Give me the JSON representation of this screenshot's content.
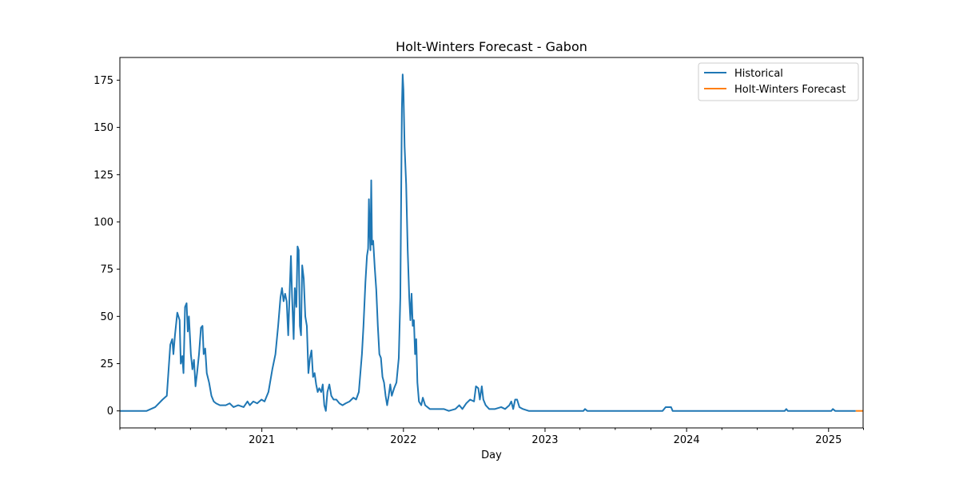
{
  "chart_data": {
    "type": "line",
    "title": "Holt-Winters Forecast - Gabon",
    "xlabel": "Day",
    "ylabel": "",
    "xlim": [
      "2020-01-01",
      "2025-03-31"
    ],
    "ylim": [
      -9,
      187
    ],
    "yticks": [
      0,
      25,
      50,
      75,
      100,
      125,
      150,
      175
    ],
    "xticks": [
      {
        "date": "2021-01-01",
        "label": "2021"
      },
      {
        "date": "2022-01-01",
        "label": "2022"
      },
      {
        "date": "2023-01-01",
        "label": "2023"
      },
      {
        "date": "2024-01-01",
        "label": "2024"
      },
      {
        "date": "2025-01-01",
        "label": "2025"
      }
    ],
    "minor_xticks": [
      "2020-01-01",
      "2020-04-01",
      "2020-07-01",
      "2020-10-01",
      "2021-04-01",
      "2021-07-01",
      "2021-10-01",
      "2022-04-01",
      "2022-07-01",
      "2022-10-01",
      "2023-04-01",
      "2023-07-01",
      "2023-10-01",
      "2024-04-01",
      "2024-07-01",
      "2024-10-01",
      "2025-04-01"
    ],
    "grid": false,
    "legend_position": "top-right",
    "series": [
      {
        "name": "Historical",
        "color": "#1f77b4",
        "points": [
          [
            "2020-01-01",
            0
          ],
          [
            "2020-03-10",
            0
          ],
          [
            "2020-04-01",
            2
          ],
          [
            "2020-04-20",
            6
          ],
          [
            "2020-05-01",
            8
          ],
          [
            "2020-05-05",
            20
          ],
          [
            "2020-05-10",
            35
          ],
          [
            "2020-05-15",
            38
          ],
          [
            "2020-05-18",
            30
          ],
          [
            "2020-05-22",
            40
          ],
          [
            "2020-05-28",
            52
          ],
          [
            "2020-06-03",
            48
          ],
          [
            "2020-06-06",
            25
          ],
          [
            "2020-06-10",
            29
          ],
          [
            "2020-06-13",
            20
          ],
          [
            "2020-06-17",
            55
          ],
          [
            "2020-06-21",
            57
          ],
          [
            "2020-06-24",
            42
          ],
          [
            "2020-06-27",
            50
          ],
          [
            "2020-07-02",
            30
          ],
          [
            "2020-07-06",
            22
          ],
          [
            "2020-07-10",
            27
          ],
          [
            "2020-07-14",
            13
          ],
          [
            "2020-07-18",
            20
          ],
          [
            "2020-07-23",
            30
          ],
          [
            "2020-07-28",
            44
          ],
          [
            "2020-08-01",
            45
          ],
          [
            "2020-08-04",
            30
          ],
          [
            "2020-08-08",
            33
          ],
          [
            "2020-08-12",
            20
          ],
          [
            "2020-08-18",
            15
          ],
          [
            "2020-08-24",
            8
          ],
          [
            "2020-08-30",
            5
          ],
          [
            "2020-09-05",
            4
          ],
          [
            "2020-09-15",
            3
          ],
          [
            "2020-09-30",
            3
          ],
          [
            "2020-10-10",
            4
          ],
          [
            "2020-10-20",
            2
          ],
          [
            "2020-11-01",
            3
          ],
          [
            "2020-11-15",
            2
          ],
          [
            "2020-11-25",
            5
          ],
          [
            "2020-12-01",
            3
          ],
          [
            "2020-12-10",
            5
          ],
          [
            "2020-12-20",
            4
          ],
          [
            "2020-12-31",
            6
          ],
          [
            "2021-01-08",
            5
          ],
          [
            "2021-01-18",
            10
          ],
          [
            "2021-01-28",
            22
          ],
          [
            "2021-02-05",
            30
          ],
          [
            "2021-02-12",
            45
          ],
          [
            "2021-02-18",
            60
          ],
          [
            "2021-02-22",
            65
          ],
          [
            "2021-02-26",
            58
          ],
          [
            "2021-03-02",
            62
          ],
          [
            "2021-03-06",
            58
          ],
          [
            "2021-03-10",
            40
          ],
          [
            "2021-03-14",
            65
          ],
          [
            "2021-03-17",
            82
          ],
          [
            "2021-03-20",
            60
          ],
          [
            "2021-03-24",
            38
          ],
          [
            "2021-03-27",
            65
          ],
          [
            "2021-03-31",
            55
          ],
          [
            "2021-04-03",
            87
          ],
          [
            "2021-04-06",
            85
          ],
          [
            "2021-04-09",
            45
          ],
          [
            "2021-04-12",
            40
          ],
          [
            "2021-04-15",
            77
          ],
          [
            "2021-04-19",
            70
          ],
          [
            "2021-04-23",
            50
          ],
          [
            "2021-04-27",
            45
          ],
          [
            "2021-05-01",
            20
          ],
          [
            "2021-05-05",
            28
          ],
          [
            "2021-05-09",
            32
          ],
          [
            "2021-05-13",
            18
          ],
          [
            "2021-05-17",
            20
          ],
          [
            "2021-05-21",
            14
          ],
          [
            "2021-05-25",
            10
          ],
          [
            "2021-05-29",
            12
          ],
          [
            "2021-06-03",
            10
          ],
          [
            "2021-06-07",
            14
          ],
          [
            "2021-06-11",
            3
          ],
          [
            "2021-06-15",
            0
          ],
          [
            "2021-06-19",
            10
          ],
          [
            "2021-06-24",
            14
          ],
          [
            "2021-06-29",
            8
          ],
          [
            "2021-07-05",
            6
          ],
          [
            "2021-07-12",
            6
          ],
          [
            "2021-07-20",
            4
          ],
          [
            "2021-07-28",
            3
          ],
          [
            "2021-08-05",
            4
          ],
          [
            "2021-08-15",
            5
          ],
          [
            "2021-08-25",
            7
          ],
          [
            "2021-09-01",
            6
          ],
          [
            "2021-09-08",
            10
          ],
          [
            "2021-09-12",
            20
          ],
          [
            "2021-09-16",
            30
          ],
          [
            "2021-09-20",
            45
          ],
          [
            "2021-09-25",
            68
          ],
          [
            "2021-09-29",
            82
          ],
          [
            "2021-10-02",
            86
          ],
          [
            "2021-10-04",
            112
          ],
          [
            "2021-10-06",
            95
          ],
          [
            "2021-10-08",
            85
          ],
          [
            "2021-10-10",
            122
          ],
          [
            "2021-10-12",
            88
          ],
          [
            "2021-10-15",
            90
          ],
          [
            "2021-10-19",
            76
          ],
          [
            "2021-10-23",
            64
          ],
          [
            "2021-10-27",
            45
          ],
          [
            "2021-10-31",
            30
          ],
          [
            "2021-11-04",
            28
          ],
          [
            "2021-11-08",
            18
          ],
          [
            "2021-11-12",
            15
          ],
          [
            "2021-11-16",
            8
          ],
          [
            "2021-11-20",
            3
          ],
          [
            "2021-11-24",
            8
          ],
          [
            "2021-11-28",
            14
          ],
          [
            "2021-12-02",
            8
          ],
          [
            "2021-12-08",
            12
          ],
          [
            "2021-12-14",
            15
          ],
          [
            "2021-12-20",
            28
          ],
          [
            "2021-12-24",
            60
          ],
          [
            "2021-12-28",
            160
          ],
          [
            "2021-12-30",
            178
          ],
          [
            "2022-01-01",
            170
          ],
          [
            "2022-01-04",
            140
          ],
          [
            "2022-01-08",
            120
          ],
          [
            "2022-01-12",
            85
          ],
          [
            "2022-01-16",
            60
          ],
          [
            "2022-01-19",
            48
          ],
          [
            "2022-01-22",
            62
          ],
          [
            "2022-01-25",
            45
          ],
          [
            "2022-01-28",
            48
          ],
          [
            "2022-01-31",
            30
          ],
          [
            "2022-02-03",
            38
          ],
          [
            "2022-02-06",
            15
          ],
          [
            "2022-02-10",
            5
          ],
          [
            "2022-02-16",
            3
          ],
          [
            "2022-02-20",
            7
          ],
          [
            "2022-02-26",
            3
          ],
          [
            "2022-03-10",
            1
          ],
          [
            "2022-03-25",
            1
          ],
          [
            "2022-04-15",
            1
          ],
          [
            "2022-04-28",
            0
          ],
          [
            "2022-05-15",
            1
          ],
          [
            "2022-05-25",
            3
          ],
          [
            "2022-06-02",
            1
          ],
          [
            "2022-06-12",
            4
          ],
          [
            "2022-06-22",
            6
          ],
          [
            "2022-07-02",
            5
          ],
          [
            "2022-07-07",
            13
          ],
          [
            "2022-07-13",
            12
          ],
          [
            "2022-07-17",
            6
          ],
          [
            "2022-07-22",
            13
          ],
          [
            "2022-07-26",
            6
          ],
          [
            "2022-08-01",
            3
          ],
          [
            "2022-08-10",
            1
          ],
          [
            "2022-08-25",
            1
          ],
          [
            "2022-09-10",
            2
          ],
          [
            "2022-09-20",
            1
          ],
          [
            "2022-10-01",
            3
          ],
          [
            "2022-10-06",
            5
          ],
          [
            "2022-10-11",
            1
          ],
          [
            "2022-10-16",
            6
          ],
          [
            "2022-10-21",
            6
          ],
          [
            "2022-10-27",
            2
          ],
          [
            "2022-11-05",
            1
          ],
          [
            "2022-11-20",
            0
          ],
          [
            "2022-12-31",
            0
          ],
          [
            "2023-04-10",
            0
          ],
          [
            "2023-04-14",
            1
          ],
          [
            "2023-04-20",
            0
          ],
          [
            "2023-10-31",
            0
          ],
          [
            "2023-11-04",
            1
          ],
          [
            "2023-11-08",
            2
          ],
          [
            "2023-11-22",
            2
          ],
          [
            "2023-11-26",
            0
          ],
          [
            "2024-09-10",
            0
          ],
          [
            "2024-09-14",
            1
          ],
          [
            "2024-09-18",
            0
          ],
          [
            "2025-01-08",
            0
          ],
          [
            "2025-01-12",
            1
          ],
          [
            "2025-01-18",
            0
          ],
          [
            "2025-03-12",
            0
          ]
        ]
      },
      {
        "name": "Holt-Winters Forecast",
        "color": "#ff7f0e",
        "points": [
          [
            "2025-03-12",
            0
          ],
          [
            "2025-03-31",
            0
          ]
        ]
      }
    ]
  }
}
